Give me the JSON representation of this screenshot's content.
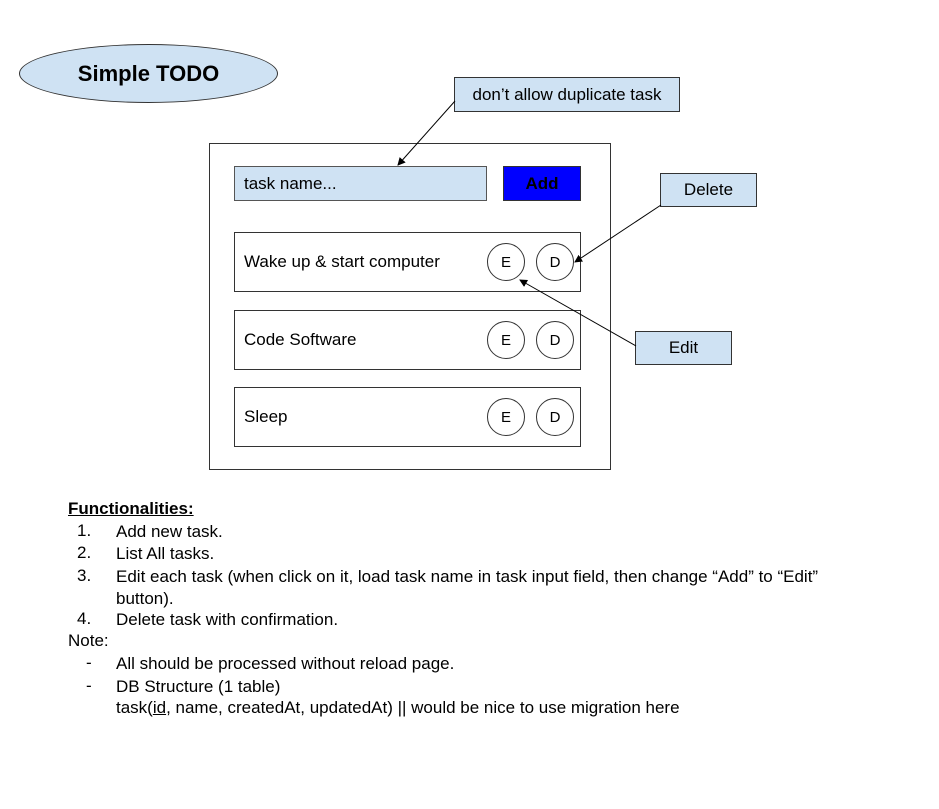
{
  "title": "Simple TODO",
  "colors": {
    "callout_fill": "#cfe2f3",
    "add_button_fill": "#0000ff",
    "outline": "#333333"
  },
  "callouts": {
    "duplicate": "don’t allow duplicate task",
    "delete": "Delete",
    "edit": "Edit"
  },
  "form": {
    "placeholder": "task name...",
    "add_label": "Add"
  },
  "tasks": [
    {
      "label": "Wake up & start computer",
      "edit": "E",
      "delete": "D"
    },
    {
      "label": "Code Software",
      "edit": "E",
      "delete": "D"
    },
    {
      "label": "Sleep",
      "edit": "E",
      "delete": "D"
    }
  ],
  "functionalities": {
    "heading": "Functionalities:",
    "items": [
      {
        "num": "1.",
        "text": "Add new task."
      },
      {
        "num": "2.",
        "text": "List All tasks."
      },
      {
        "num": "3.",
        "line1": "Edit each task (when click on it, load task name in task input field, then change “Add” to “Edit”",
        "line2": "button)."
      },
      {
        "num": "4.",
        "text": "Delete task with confirmation."
      }
    ]
  },
  "note": {
    "label": "Note:",
    "items": [
      {
        "dash": "-",
        "text": "All should be processed without reload page."
      },
      {
        "dash": "-",
        "text": "DB Structure (1 table)",
        "pre": "task(",
        "underlined": "id",
        "post": ", name, createdAt, updatedAt) || would be nice to use migration here"
      }
    ]
  }
}
